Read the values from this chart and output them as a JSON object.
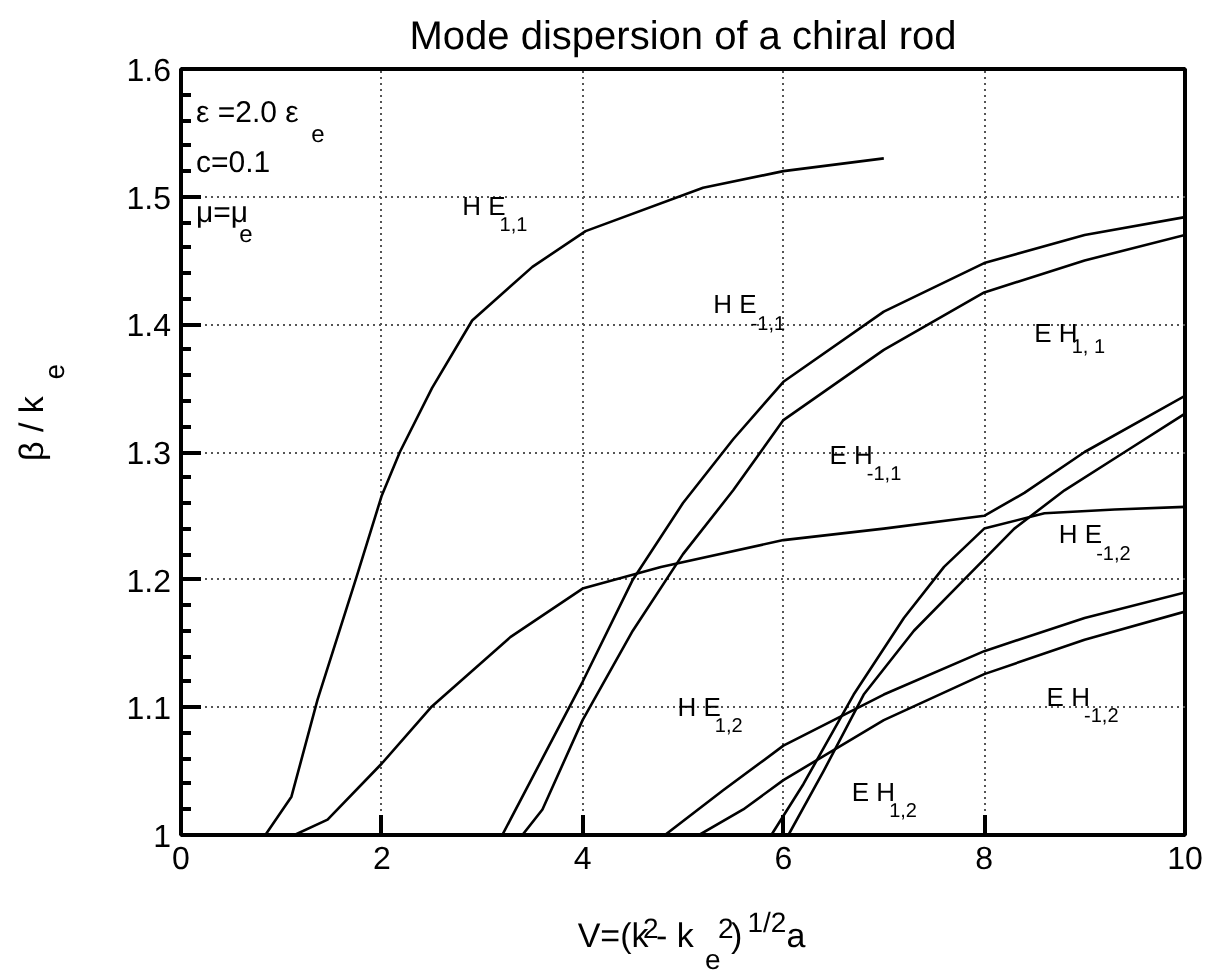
{
  "chart_data": {
    "type": "line",
    "title": "Mode dispersion of a chiral rod",
    "xlabel": "V=(k$^{2}$- k$_{e}$$^{2}$)$^{1/2}$a",
    "ylabel": "β / k$_{e}$",
    "xlim": [
      0,
      10
    ],
    "ylim": [
      1,
      1.6
    ],
    "xticks": [
      0,
      2,
      4,
      6,
      8,
      10
    ],
    "yticks": [
      1,
      1.1,
      1.2,
      1.3,
      1.4,
      1.5,
      1.6
    ],
    "grid": true,
    "series": [
      {
        "name": "H E$_{1,1}$",
        "color": "#000000",
        "x": [
          0.84,
          1.1,
          1.36,
          1.74,
          2.0,
          2.18,
          2.5,
          2.9,
          3.5,
          4.03,
          5.2,
          6.0,
          7.0
        ],
        "values": [
          1.0,
          1.03,
          1.106,
          1.2,
          1.266,
          1.3,
          1.35,
          1.403,
          1.445,
          1.473,
          1.507,
          1.52,
          1.53
        ]
      },
      {
        "name": "E H$_{-1,1}$",
        "color": "#000000",
        "x": [
          1.13,
          1.46,
          2.0,
          2.49,
          3.28,
          4.0,
          4.78,
          6.0,
          7.0,
          8.0,
          8.4,
          9.0,
          10
        ],
        "values": [
          1.0,
          1.012,
          1.056,
          1.1,
          1.155,
          1.193,
          1.21,
          1.231,
          1.24,
          1.25,
          1.268,
          1.3,
          1.344
        ]
      },
      {
        "name": "H E$_{-1,1}$",
        "color": "#000000",
        "x": [
          3.2,
          3.6,
          4.0,
          4.5,
          5.0,
          5.5,
          6.0,
          7.0,
          8.0,
          9.0,
          10
        ],
        "values": [
          1.0,
          1.06,
          1.12,
          1.2,
          1.26,
          1.31,
          1.355,
          1.41,
          1.448,
          1.47,
          1.484
        ]
      },
      {
        "name": "E H$_{1, 1}$",
        "color": "#000000",
        "x": [
          3.4,
          3.6,
          4.0,
          4.5,
          5.0,
          5.5,
          6.0,
          7.0,
          8.0,
          9.0,
          10
        ],
        "values": [
          1.0,
          1.02,
          1.09,
          1.16,
          1.22,
          1.27,
          1.325,
          1.38,
          1.425,
          1.45,
          1.47
        ]
      },
      {
        "name": "H E$_{1,2}$",
        "color": "#000000",
        "x": [
          4.82,
          5.4,
          6.0,
          7.0,
          8.0,
          9.0,
          10
        ],
        "values": [
          1.0,
          1.035,
          1.07,
          1.11,
          1.144,
          1.17,
          1.19
        ]
      },
      {
        "name": "E H$_{-1,2}$",
        "color": "#000000",
        "x": [
          5.16,
          5.6,
          6.0,
          7.0,
          8.0,
          9.0,
          10
        ],
        "values": [
          1.0,
          1.02,
          1.043,
          1.09,
          1.126,
          1.153,
          1.175
        ]
      },
      {
        "name": "H E$_{-1,2}$",
        "color": "#000000",
        "x": [
          5.88,
          6.2,
          6.7,
          7.2,
          7.6,
          8.0,
          8.6,
          9.3,
          10
        ],
        "values": [
          1.0,
          1.04,
          1.11,
          1.17,
          1.21,
          1.24,
          1.252,
          1.255,
          1.257
        ]
      },
      {
        "name": "E H$_{1,2}$",
        "color": "#000000",
        "x": [
          6.05,
          6.4,
          6.8,
          7.3,
          7.8,
          8.3,
          8.8,
          9.4,
          10
        ],
        "values": [
          1.0,
          1.05,
          1.11,
          1.16,
          1.2,
          1.24,
          1.27,
          1.3,
          1.33
        ]
      }
    ],
    "annotations": [
      "ε =2.0 ε$_{e}$",
      "c=0.1",
      "μ=μ$_{e}$"
    ]
  }
}
